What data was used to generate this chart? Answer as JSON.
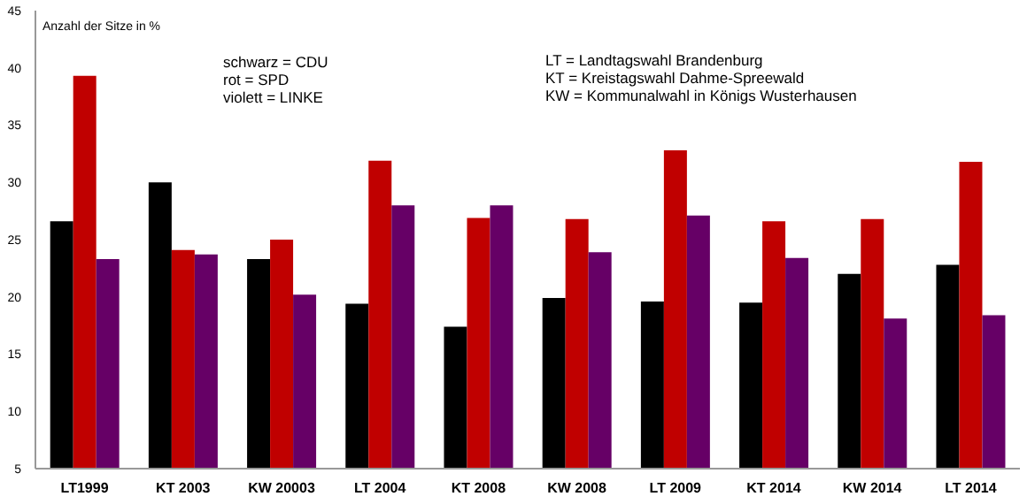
{
  "chart_data": {
    "type": "bar",
    "ylabel": "Anzahl der Sitze in %",
    "categories": [
      "LT1999",
      "KT 2003",
      "KW 20003",
      "LT 2004",
      "KT 2008",
      "KW 2008",
      "LT 2009",
      "KT 2014",
      "KW 2014",
      "LT 2014"
    ],
    "series": [
      {
        "color": "#000000",
        "values": [
          26.6,
          30,
          23.3,
          19.4,
          17.4,
          19.9,
          19.6,
          19.5,
          22.0,
          22.8
        ]
      },
      {
        "color": "#c00000",
        "values": [
          39.3,
          24.1,
          25,
          31.9,
          26.9,
          26.8,
          32.8,
          26.6,
          26.8,
          31.8
        ]
      },
      {
        "color": "#660066",
        "values": [
          23.3,
          23.7,
          20.2,
          28,
          28,
          23.9,
          27.1,
          23.4,
          18.1,
          18.4
        ]
      }
    ],
    "ylim": [
      5,
      45
    ],
    "yticks": [
      5,
      10,
      15,
      20,
      25,
      30,
      35,
      40,
      45
    ],
    "grid": false,
    "legend": false,
    "annotations": [
      "schwarz = CDU",
      "rot = SPD",
      "violett = LINKE",
      "LT = Landtagswahl Brandenburg",
      "KT = Kreistagswahl Dahme-Spreewald",
      "KW = Kommunalwahl in Königs Wusterhausen"
    ]
  }
}
